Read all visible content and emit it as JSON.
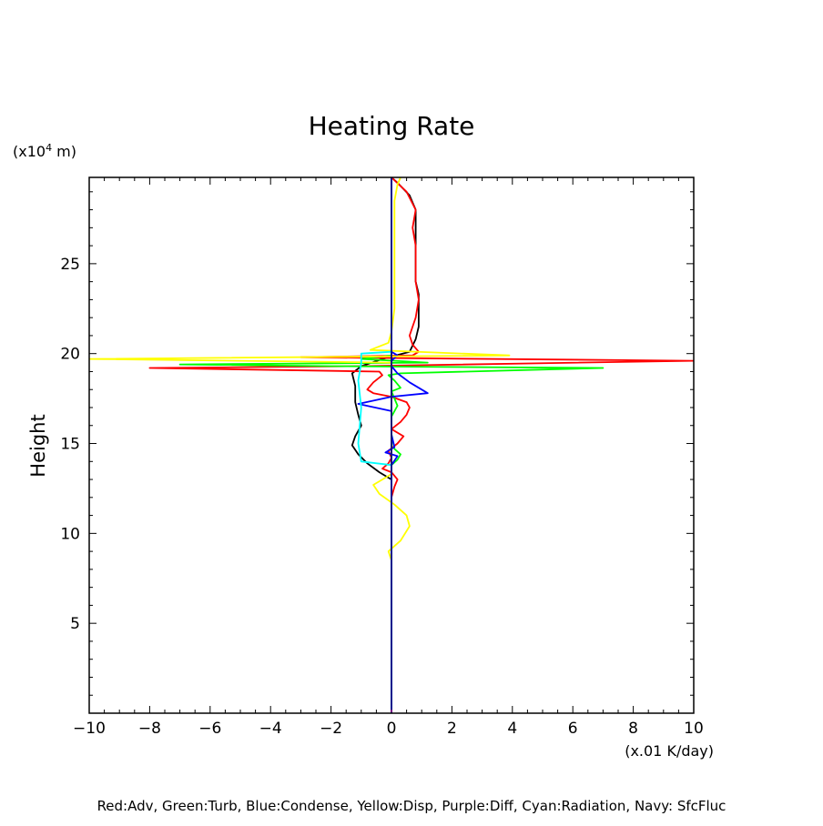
{
  "chart_data": {
    "type": "line",
    "title": "Heating Rate",
    "ylabel": "Height",
    "yunit_prefix": "(x10",
    "yunit_exp": "4",
    "yunit_suffix": " m)",
    "xunit": "(x.01 K/day)",
    "xlim": [
      -10,
      10
    ],
    "ylim": [
      0,
      29.8
    ],
    "xticks": [
      -10,
      -8,
      -6,
      -4,
      -2,
      0,
      2,
      4,
      6,
      8,
      10
    ],
    "xtick_labels": [
      "−10",
      "−8",
      "−6",
      "−4",
      "−2",
      "0",
      "2",
      "4",
      "6",
      "8",
      "10"
    ],
    "yticks": [
      5,
      10,
      15,
      20,
      25
    ],
    "ytick_labels": [
      "5",
      "10",
      "15",
      "20",
      "25"
    ],
    "grid": false,
    "legend_text": "Red:Adv, Green:Turb, Blue:Condense, Yellow:Disp, Purple:Diff, Cyan:Radiation, Navy: SfcFluc",
    "series": [
      {
        "color": "#000000",
        "points": [
          [
            0,
            0
          ],
          [
            0,
            12
          ],
          [
            0,
            13
          ],
          [
            -0.4,
            13.4
          ],
          [
            -0.8,
            13.9
          ],
          [
            -1.1,
            14.4
          ],
          [
            -1.3,
            14.9
          ],
          [
            -1.2,
            15.4
          ],
          [
            -1.0,
            16
          ],
          [
            -1.1,
            16.6
          ],
          [
            -1.2,
            17.3
          ],
          [
            -1.2,
            18.2
          ],
          [
            -1.3,
            18.9
          ],
          [
            -1.0,
            19.3
          ],
          [
            -0.3,
            19.7
          ],
          [
            0.6,
            20.1
          ],
          [
            0.8,
            20.8
          ],
          [
            0.9,
            21.5
          ],
          [
            0.9,
            22.5
          ],
          [
            0.9,
            23.3
          ],
          [
            0.8,
            24
          ],
          [
            0.8,
            25
          ],
          [
            0.8,
            26
          ],
          [
            0.8,
            27
          ],
          [
            0.8,
            28
          ],
          [
            0.6,
            28.8
          ],
          [
            0.2,
            29.5
          ],
          [
            0,
            29.8
          ]
        ]
      },
      {
        "color": "#ff0000",
        "points": [
          [
            0,
            0
          ],
          [
            0,
            12
          ],
          [
            0.1,
            12.6
          ],
          [
            0.2,
            13
          ],
          [
            0,
            13.4
          ],
          [
            -0.3,
            13.6
          ],
          [
            -0.1,
            13.9
          ],
          [
            0,
            14.2
          ],
          [
            -0.1,
            14.6
          ],
          [
            0.2,
            15.0
          ],
          [
            0.4,
            15.4
          ],
          [
            0,
            15.8
          ],
          [
            0.3,
            16.2
          ],
          [
            0.5,
            16.6
          ],
          [
            0.6,
            17.0
          ],
          [
            0.5,
            17.3
          ],
          [
            0,
            17.6
          ],
          [
            -0.6,
            17.8
          ],
          [
            -0.8,
            18.0
          ],
          [
            -0.6,
            18.4
          ],
          [
            -0.3,
            18.8
          ],
          [
            -0.4,
            19.0
          ],
          [
            -8,
            19.2
          ],
          [
            -1,
            19.3
          ],
          [
            10,
            19.6
          ],
          [
            -3,
            19.8
          ],
          [
            0.7,
            19.9
          ],
          [
            0.9,
            20.1
          ],
          [
            0.7,
            20.5
          ],
          [
            0.6,
            21
          ],
          [
            0.7,
            21.5
          ],
          [
            0.8,
            22
          ],
          [
            0.9,
            23
          ],
          [
            0.8,
            24
          ],
          [
            0.8,
            25
          ],
          [
            0.8,
            26
          ],
          [
            0.7,
            27
          ],
          [
            0.8,
            28
          ],
          [
            0.5,
            29
          ],
          [
            0,
            29.8
          ]
        ]
      },
      {
        "color": "#00ff00",
        "points": [
          [
            0,
            0
          ],
          [
            0,
            13.8
          ],
          [
            0.2,
            14.1
          ],
          [
            0.3,
            14.4
          ],
          [
            0.1,
            14.7
          ],
          [
            0,
            15.5
          ],
          [
            0,
            16.5
          ],
          [
            0.2,
            17.1
          ],
          [
            0.1,
            17.5
          ],
          [
            0,
            17.9
          ],
          [
            0.3,
            18.1
          ],
          [
            0.1,
            18.5
          ],
          [
            -0.1,
            18.8
          ],
          [
            0.3,
            18.9
          ],
          [
            7,
            19.2
          ],
          [
            -2,
            19.3
          ],
          [
            -7,
            19.4
          ],
          [
            1.2,
            19.5
          ],
          [
            -1,
            19.7
          ],
          [
            0,
            19.9
          ],
          [
            0,
            29.8
          ]
        ]
      },
      {
        "color": "#0000ff",
        "points": [
          [
            0,
            0
          ],
          [
            0,
            13.8
          ],
          [
            0.2,
            14.3
          ],
          [
            -0.2,
            14.5
          ],
          [
            0.1,
            14.8
          ],
          [
            0,
            15.5
          ],
          [
            0,
            16.8
          ],
          [
            -1.1,
            17.2
          ],
          [
            0,
            17.6
          ],
          [
            1.2,
            17.8
          ],
          [
            0.6,
            18.4
          ],
          [
            0.2,
            18.9
          ],
          [
            0,
            19.3
          ],
          [
            0,
            19.6
          ],
          [
            0.2,
            19.9
          ],
          [
            0,
            20.1
          ],
          [
            0,
            29.8
          ]
        ]
      },
      {
        "color": "#ffff00",
        "points": [
          [
            0,
            8.5
          ],
          [
            -0.1,
            9
          ],
          [
            0.3,
            9.6
          ],
          [
            0.6,
            10.4
          ],
          [
            0.5,
            11
          ],
          [
            0.1,
            11.6
          ],
          [
            -0.4,
            12.2
          ],
          [
            -0.6,
            12.7
          ],
          [
            -0.3,
            13.0
          ],
          [
            0,
            13.3
          ],
          [
            0,
            19.5
          ],
          [
            -10,
            19.7
          ],
          [
            3.9,
            19.9
          ],
          [
            -0.7,
            20.2
          ],
          [
            -0.1,
            20.6
          ],
          [
            0,
            21.2
          ],
          [
            0.1,
            22.5
          ],
          [
            0.1,
            24
          ],
          [
            0.1,
            25.5
          ],
          [
            0.1,
            27
          ],
          [
            0.1,
            28.5
          ],
          [
            0.2,
            29.4
          ],
          [
            0.3,
            29.8
          ]
        ]
      },
      {
        "color": "#00ffff",
        "points": [
          [
            0,
            0
          ],
          [
            0,
            13.8
          ],
          [
            -1.0,
            14.0
          ],
          [
            -1.1,
            15
          ],
          [
            -1.0,
            17
          ],
          [
            -1.1,
            18.5
          ],
          [
            -1.0,
            19.5
          ],
          [
            -1.0,
            20
          ],
          [
            0,
            20.1
          ],
          [
            0,
            29.8
          ]
        ]
      },
      {
        "color": "#000080",
        "points": [
          [
            0,
            0
          ],
          [
            0,
            29.8
          ]
        ]
      },
      {
        "color": "#800080",
        "points": [
          [
            0,
            0.05
          ],
          [
            0,
            0.2
          ]
        ]
      }
    ]
  }
}
